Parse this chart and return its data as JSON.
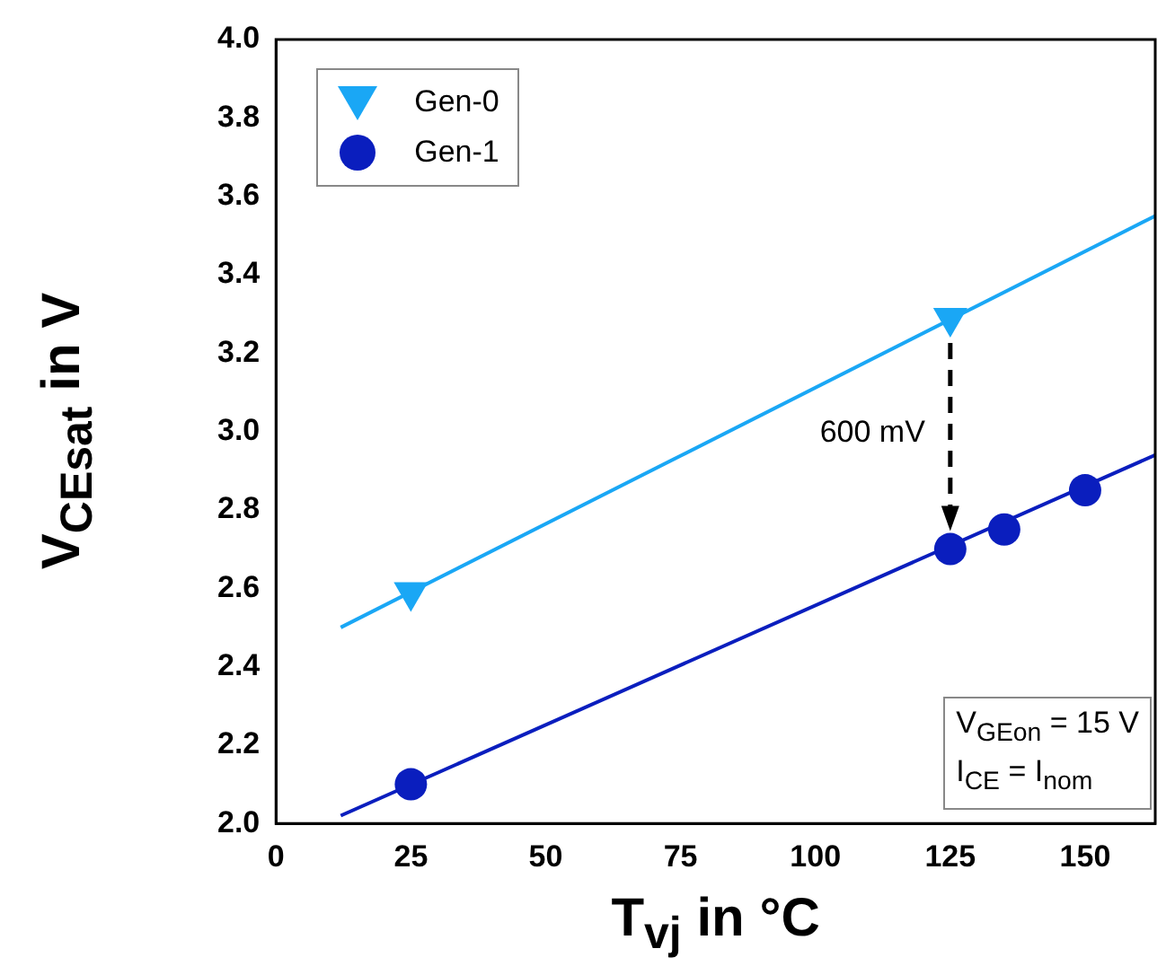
{
  "chart_data": {
    "type": "scatter",
    "xlabel": "T$_{vj}$ in °C",
    "ylabel": "V$_{CEsat}$ in V",
    "xlim": [
      0,
      163
    ],
    "xticks": [
      0,
      25,
      50,
      75,
      100,
      125,
      150
    ],
    "ylim": [
      2.0,
      4.0
    ],
    "yticks": [
      {
        "value": 2,
        "label": "2.0"
      },
      2.2,
      2.4,
      2.6,
      2.8,
      {
        "value": 3,
        "label": "3.0"
      },
      3.2,
      3.4,
      3.6,
      3.8,
      {
        "value": 4,
        "label": "4.0"
      }
    ],
    "grid": false,
    "legend": "top left",
    "series": [
      {
        "name": "Gen-0",
        "color": "#1aa7f5",
        "marker": "triangle",
        "x": [
          25,
          125
        ],
        "values": [
          2.59,
          3.29
        ]
      },
      {
        "name": "Gen-1",
        "color": "#0a1ebe",
        "marker": "circle",
        "x": [
          25,
          125,
          135,
          150
        ],
        "values": [
          2.1,
          2.7,
          2.75,
          2.85
        ]
      },
      {
        "type": "line",
        "color": "#1aa7f5",
        "marker": "none",
        "x": [
          12,
          163
        ],
        "values": [
          2.5,
          3.55
        ]
      },
      {
        "type": "line",
        "color": "#0a1ebe",
        "marker": "none",
        "x": [
          12,
          163
        ],
        "values": [
          2.02,
          2.94
        ]
      }
    ],
    "annotations": [
      "600 mV",
      "V$_{GEon}$ = 15 V",
      "I$_{CE}$ = I$_{nom}$"
    ]
  }
}
